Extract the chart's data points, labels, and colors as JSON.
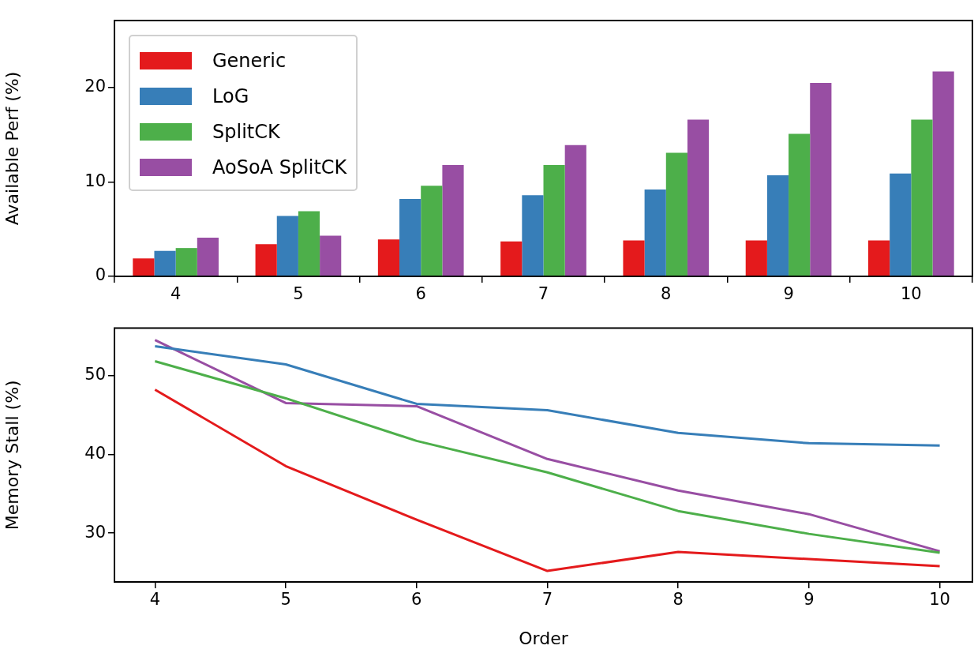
{
  "chart_data": [
    {
      "type": "bar",
      "ylabel": "Available Perf (%)",
      "categories": [
        "4",
        "5",
        "6",
        "7",
        "8",
        "9",
        "10"
      ],
      "ylim": [
        0,
        27.1
      ],
      "yticks": [
        0,
        10,
        20
      ],
      "grid": false,
      "legend": "top left",
      "series": [
        {
          "name": "Generic",
          "color": "#e41a1c",
          "values": [
            1.9,
            3.4,
            3.9,
            3.7,
            3.8,
            3.8,
            3.8
          ]
        },
        {
          "name": "LoG",
          "color": "#377eb8",
          "values": [
            2.7,
            6.4,
            8.2,
            8.6,
            9.2,
            10.7,
            10.9
          ]
        },
        {
          "name": "SplitCK",
          "color": "#4daf4a",
          "values": [
            3.0,
            6.9,
            9.6,
            11.8,
            13.1,
            15.1,
            16.6
          ]
        },
        {
          "name": "AoSoA SplitCK",
          "color": "#984ea3",
          "values": [
            4.1,
            4.3,
            11.8,
            13.9,
            16.6,
            20.5,
            21.7
          ]
        }
      ]
    },
    {
      "type": "line",
      "xlabel": "Order",
      "ylabel": "Memory Stall (%)",
      "x": [
        4,
        5,
        6,
        7,
        8,
        9,
        10
      ],
      "xlim": [
        3.69,
        10.25
      ],
      "xticks": [
        4,
        5,
        6,
        7,
        8,
        9,
        10
      ],
      "ylim": [
        23.8,
        56.0
      ],
      "yticks": [
        30,
        40,
        50
      ],
      "grid": false,
      "legend": false,
      "series": [
        {
          "color": "#e41a1c",
          "values": [
            48.2,
            38.5,
            31.7,
            25.2,
            27.6,
            26.7,
            25.8
          ]
        },
        {
          "color": "#377eb8",
          "values": [
            53.7,
            51.4,
            46.4,
            45.6,
            42.7,
            41.4,
            41.1
          ]
        },
        {
          "color": "#4daf4a",
          "values": [
            51.8,
            47.1,
            41.7,
            37.7,
            32.8,
            29.9,
            27.5
          ]
        },
        {
          "color": "#984ea3",
          "values": [
            54.5,
            46.5,
            46.1,
            39.4,
            35.4,
            32.4,
            27.7
          ]
        }
      ]
    }
  ]
}
